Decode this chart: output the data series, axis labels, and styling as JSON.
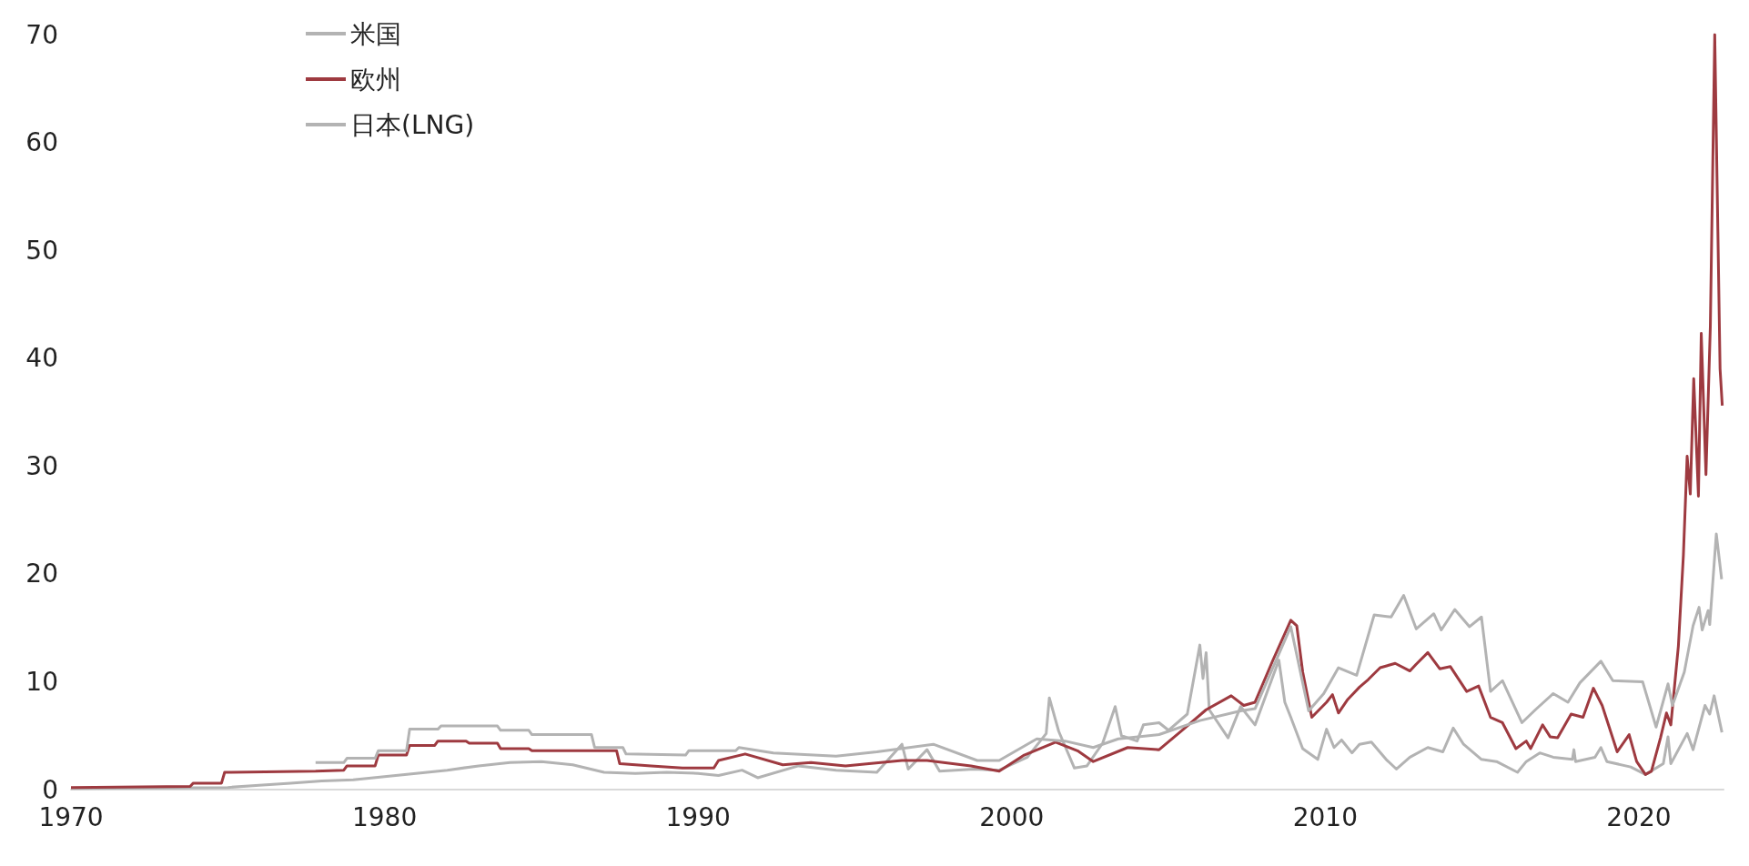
{
  "chart_data": {
    "type": "line",
    "xlim": [
      1970,
      2022.7
    ],
    "xticks": [
      1970,
      1980,
      1990,
      2000,
      2010,
      2020
    ],
    "ylim": [
      0,
      70
    ],
    "yticks": [
      0,
      10,
      20,
      30,
      40,
      50,
      60,
      70
    ],
    "grid": false,
    "legend": "top left",
    "series": [
      {
        "name": "米国",
        "color": "#b3b3b3",
        "x": [
          1970,
          1975,
          1976,
          1977,
          1978,
          1979,
          1980,
          1981,
          1982,
          1983,
          1984,
          1985,
          1986,
          1987,
          1988,
          1989,
          1990,
          1990.65,
          1991.4,
          1991.9,
          1993.2,
          1994.4,
          1995.7,
          1996.5,
          1996.7,
          1997.3,
          1997.7,
          1998.8,
          1999.6,
          2000.5,
          2001.1,
          2001.2,
          2001.5,
          2002,
          2002.4,
          2002.9,
          2003.3,
          2003.5,
          2004,
          2004.2,
          2004.7,
          2005,
          2005.6,
          2006,
          2006.1,
          2006.2,
          2006.3,
          2006.9,
          2007.3,
          2007.76,
          2008.52,
          2008.71,
          2008.9,
          2009.28,
          2009.76,
          2010.04,
          2010.28,
          2010.52,
          2010.85,
          2011.09,
          2011.47,
          2011.94,
          2012.27,
          2012.7,
          2013.27,
          2013.75,
          2014.08,
          2014.41,
          2014.98,
          2015.46,
          2016.13,
          2016.41,
          2016.84,
          2017.27,
          2017.88,
          2017.93,
          2017.98,
          2018.6,
          2018.79,
          2018.98,
          2019.74,
          2020.21,
          2020.78,
          2020.93,
          2021.02,
          2021.54,
          2021.73,
          2022.11,
          2022.26,
          2022.4,
          2022.65
        ],
        "values": [
          0.1,
          0.2,
          0.4,
          0.6,
          0.8,
          0.9,
          1.2,
          1.5,
          1.8,
          2.2,
          2.5,
          2.6,
          2.3,
          1.6,
          1.5,
          1.6,
          1.5,
          1.3,
          1.8,
          1.1,
          2.2,
          1.8,
          1.6,
          4.2,
          1.9,
          3.7,
          1.7,
          1.9,
          1.8,
          3.0,
          5.2,
          8.5,
          5.4,
          2.0,
          2.2,
          4.3,
          7.7,
          5.0,
          4.5,
          6.0,
          6.2,
          5.5,
          7.0,
          13.4,
          10.3,
          12.7,
          7.4,
          4.8,
          7.7,
          6.0,
          12.0,
          8.1,
          6.7,
          3.8,
          2.8,
          5.6,
          3.9,
          4.6,
          3.4,
          4.2,
          4.4,
          2.8,
          1.9,
          3.0,
          3.9,
          3.5,
          5.7,
          4.2,
          2.8,
          2.6,
          1.6,
          2.6,
          3.4,
          3.0,
          2.8,
          3.7,
          2.6,
          3.0,
          3.9,
          2.6,
          2.1,
          1.4,
          2.4,
          4.9,
          2.4,
          5.2,
          3.7,
          7.8,
          7.0,
          8.7,
          5.3
        ]
      },
      {
        "name": "欧州",
        "color": "#9e3a40",
        "x": [
          1970,
          1973.8,
          1973.9,
          1974.8,
          1974.9,
          1977.8,
          1978.7,
          1978.8,
          1979.7,
          1979.8,
          1980.7,
          1980.8,
          1981.6,
          1981.7,
          1982.6,
          1982.7,
          1983.6,
          1983.7,
          1984.6,
          1984.7,
          1987.4,
          1987.5,
          1988.5,
          1989.5,
          1990.5,
          1990.65,
          1991.5,
          1992.7,
          1993.6,
          1994.7,
          1996.5,
          1997.3,
          1998.7,
          1999.6,
          2000.4,
          2001.4,
          2002.1,
          2002.6,
          2003.7,
          2004.7,
          2005.4,
          2006.2,
          2007,
          2007.4,
          2007.76,
          2008.33,
          2008.9,
          2009.09,
          2009.28,
          2009.57,
          2010.04,
          2010.23,
          2010.42,
          2010.7,
          2011.09,
          2011.37,
          2011.75,
          2012.23,
          2012.7,
          2012.89,
          2013.27,
          2013.65,
          2013.99,
          2014.51,
          2014.89,
          2015.27,
          2015.65,
          2016.08,
          2016.41,
          2016.55,
          2016.93,
          2017.17,
          2017.41,
          2017.84,
          2018.22,
          2018.55,
          2018.83,
          2019.31,
          2019.69,
          2019.93,
          2020.21,
          2020.4,
          2020.69,
          2020.88,
          2021.02,
          2021.26,
          2021.42,
          2021.54,
          2021.64,
          2021.75,
          2021.9,
          2021.99,
          2022.14,
          2022.28,
          2022.42,
          2022.59,
          2022.66
        ],
        "values": [
          0.2,
          0.3,
          0.6,
          0.6,
          1.6,
          1.7,
          1.8,
          2.2,
          2.2,
          3.2,
          3.2,
          4.1,
          4.1,
          4.5,
          4.5,
          4.3,
          4.3,
          3.8,
          3.8,
          3.6,
          3.6,
          2.4,
          2.2,
          2.0,
          2.0,
          2.7,
          3.3,
          2.3,
          2.5,
          2.2,
          2.7,
          2.7,
          2.2,
          1.7,
          3.2,
          4.4,
          3.6,
          2.6,
          3.9,
          3.7,
          5.4,
          7.4,
          8.7,
          7.8,
          8.1,
          12.0,
          15.7,
          15.2,
          10.9,
          6.7,
          8.1,
          8.8,
          7.1,
          8.3,
          9.5,
          10.2,
          11.3,
          11.7,
          11.0,
          11.6,
          12.7,
          11.2,
          11.4,
          9.1,
          9.6,
          6.7,
          6.2,
          3.8,
          4.5,
          3.8,
          6.0,
          4.9,
          4.8,
          7.0,
          6.7,
          9.4,
          7.8,
          3.5,
          5.1,
          2.6,
          1.4,
          1.7,
          4.8,
          7.1,
          6.0,
          13.3,
          21.7,
          30.9,
          27.4,
          38.1,
          27.2,
          42.3,
          29.2,
          43.0,
          70.0,
          39.0,
          35.6
        ]
      },
      {
        "name": "日本(LNG)",
        "color": "#b3b3b3",
        "x": [
          1977.8,
          1978.7,
          1978.8,
          1979.7,
          1979.8,
          1980.7,
          1980.8,
          1981.7,
          1981.8,
          1983.6,
          1983.7,
          1984.6,
          1984.7,
          1986.6,
          1986.7,
          1987.6,
          1987.7,
          1989.6,
          1989.7,
          1991.2,
          1991.3,
          1992.4,
          1994.4,
          1995.7,
          1997.5,
          1998.9,
          1999.6,
          2000.8,
          2001.7,
          2002.6,
          2003.4,
          2004.7,
          2006,
          2007.3,
          2007.76,
          2008.9,
          2009.47,
          2009.95,
          2010.42,
          2011.0,
          2011.56,
          2012.1,
          2012.5,
          2012.9,
          2013.46,
          2013.7,
          2014.13,
          2014.6,
          2014.98,
          2015.27,
          2015.65,
          2016.27,
          2016.7,
          2017.27,
          2017.74,
          2018.12,
          2018.79,
          2019.17,
          2020.12,
          2020.55,
          2020.93,
          2021.07,
          2021.45,
          2021.73,
          2021.92,
          2022.02,
          2022.21,
          2022.26,
          2022.47,
          2022.64
        ],
        "values": [
          2.5,
          2.5,
          2.9,
          2.9,
          3.6,
          3.6,
          5.6,
          5.6,
          5.9,
          5.9,
          5.5,
          5.5,
          5.1,
          5.1,
          3.9,
          3.9,
          3.3,
          3.2,
          3.6,
          3.6,
          3.9,
          3.4,
          3.1,
          3.5,
          4.2,
          2.7,
          2.7,
          4.7,
          4.5,
          3.9,
          4.7,
          5.1,
          6.4,
          7.3,
          7.5,
          15.1,
          7.3,
          8.9,
          11.3,
          10.6,
          16.2,
          16.0,
          18.0,
          14.9,
          16.3,
          14.8,
          16.7,
          15.1,
          16.0,
          9.1,
          10.1,
          6.2,
          7.4,
          8.9,
          8.1,
          9.9,
          11.9,
          10.1,
          10.0,
          5.8,
          9.8,
          7.8,
          10.9,
          15.2,
          16.9,
          14.8,
          16.6,
          15.3,
          23.7,
          19.5
        ]
      }
    ]
  }
}
